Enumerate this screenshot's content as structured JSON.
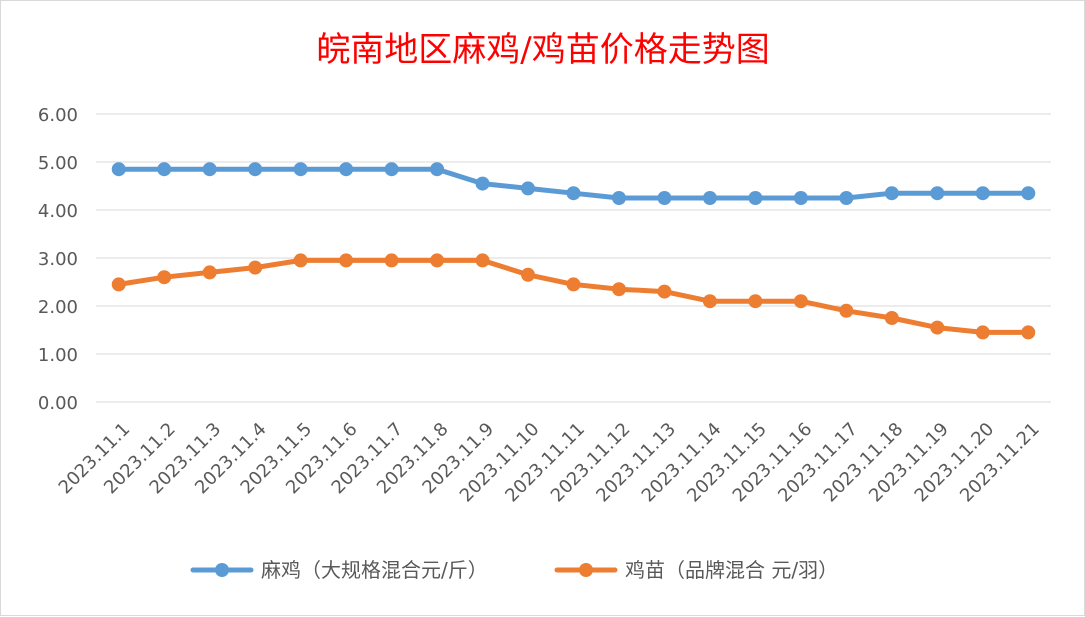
{
  "chart_data": {
    "type": "line",
    "title": "皖南地区麻鸡/鸡苗价格走势图",
    "categories": [
      "2023.11.1",
      "2023.11.2",
      "2023.11.3",
      "2023.11.4",
      "2023.11.5",
      "2023.11.6",
      "2023.11.7",
      "2023.11.8",
      "2023.11.9",
      "2023.11.10",
      "2023.11.11",
      "2023.11.12",
      "2023.11.13",
      "2023.11.14",
      "2023.11.15",
      "2023.11.16",
      "2023.11.17",
      "2023.11.18",
      "2023.11.19",
      "2023.11.20",
      "2023.11.21"
    ],
    "series": [
      {
        "name": "麻鸡（大规格混合元/斤）",
        "color": "#5b9bd5",
        "values": [
          4.85,
          4.85,
          4.85,
          4.85,
          4.85,
          4.85,
          4.85,
          4.85,
          4.55,
          4.45,
          4.35,
          4.25,
          4.25,
          4.25,
          4.25,
          4.25,
          4.25,
          4.35,
          4.35,
          4.35,
          4.35
        ]
      },
      {
        "name": "鸡苗（品牌混合 元/羽）",
        "color": "#ed7d31",
        "values": [
          2.45,
          2.6,
          2.7,
          2.8,
          2.95,
          2.95,
          2.95,
          2.95,
          2.95,
          2.65,
          2.45,
          2.35,
          2.3,
          2.1,
          2.1,
          2.1,
          1.9,
          1.75,
          1.55,
          1.45,
          1.45
        ]
      }
    ],
    "yticks": [
      "0.00",
      "1.00",
      "2.00",
      "3.00",
      "4.00",
      "5.00",
      "6.00"
    ],
    "ylim": [
      0,
      6
    ],
    "grid": true,
    "legend_position": "bottom"
  }
}
